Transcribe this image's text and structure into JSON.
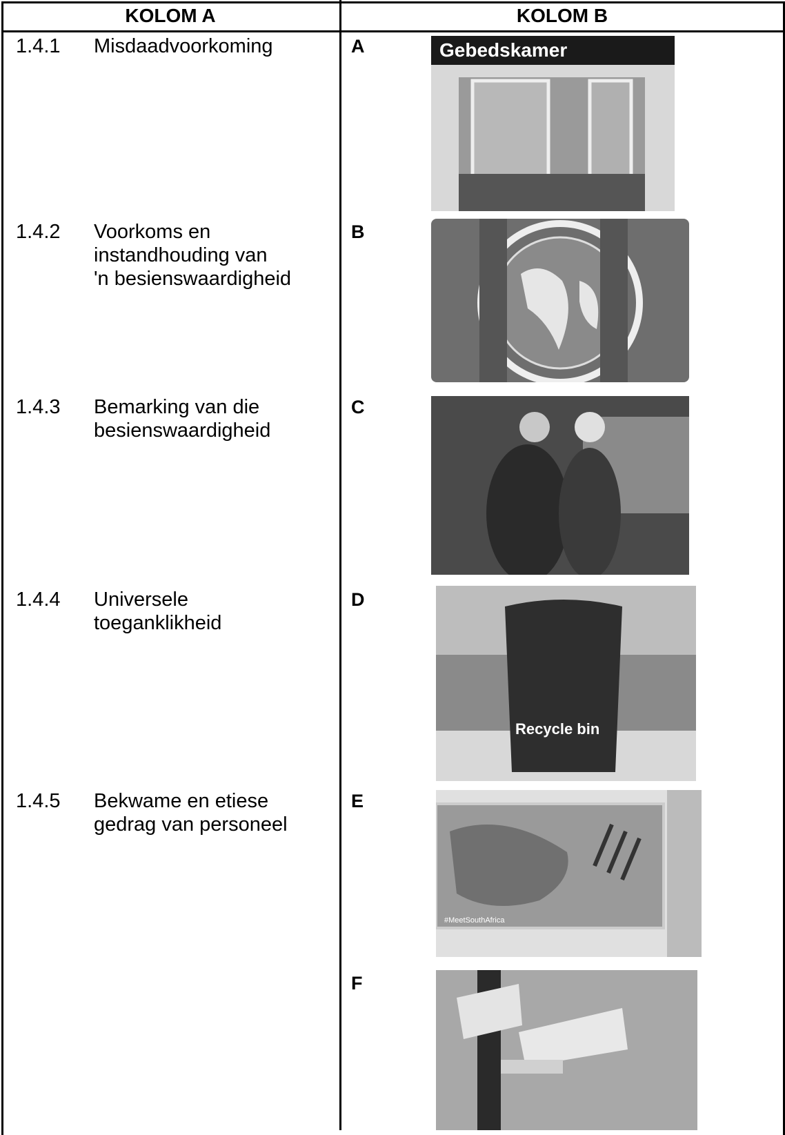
{
  "header": {
    "column_a": "KOLOM A",
    "column_b": "KOLOM B"
  },
  "items": [
    {
      "number": "1.4.1",
      "lines": [
        "Misdaadvoorkoming"
      ]
    },
    {
      "number": "1.4.2",
      "lines": [
        "Voorkoms en",
        "instandhouding van",
        "'n besienswaardigheid"
      ]
    },
    {
      "number": "1.4.3",
      "lines": [
        "Bemarking van die",
        "besienswaardigheid"
      ]
    },
    {
      "number": "1.4.4",
      "lines": [
        "Universele",
        "toeganklikheid"
      ]
    },
    {
      "number": "1.4.5",
      "lines": [
        "Bekwame en etiese",
        "gedrag van personeel"
      ]
    }
  ],
  "options": [
    {
      "letter": "A",
      "image_text": "Gebedskamer"
    },
    {
      "letter": "B"
    },
    {
      "letter": "C"
    },
    {
      "letter": "D",
      "image_text": "Recycle bin"
    },
    {
      "letter": "E",
      "image_text": "#MeetSouthAfrica"
    },
    {
      "letter": "F"
    }
  ]
}
